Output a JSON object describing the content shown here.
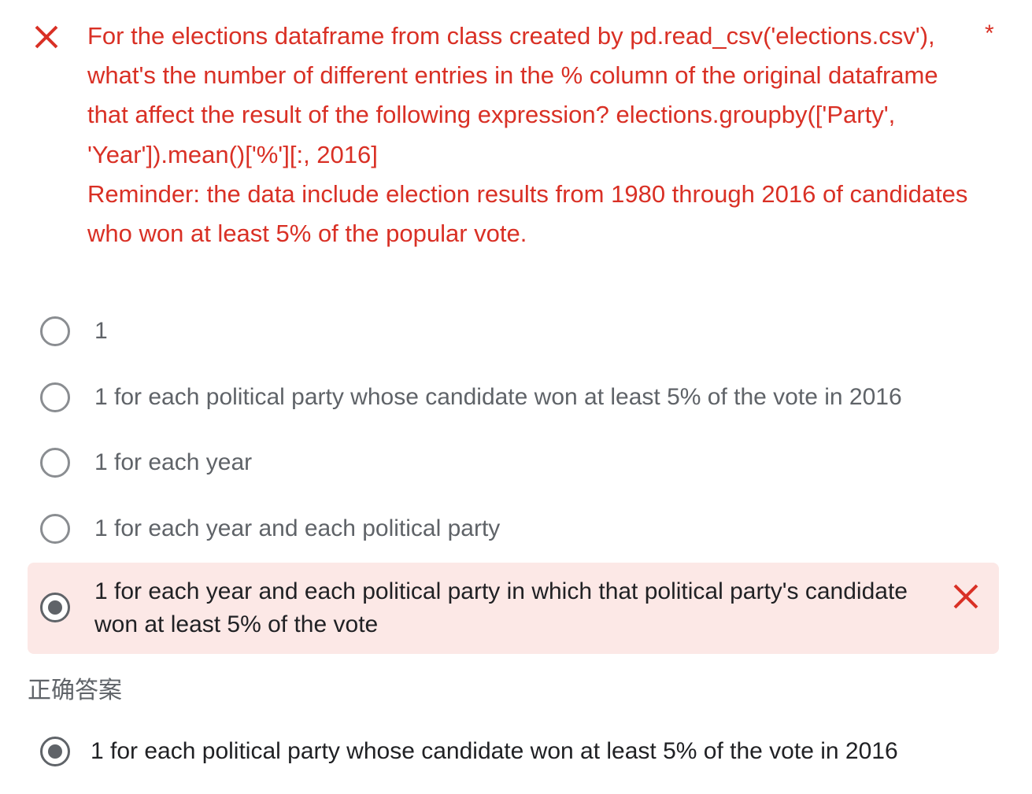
{
  "question": {
    "status_icon": "close-icon",
    "text": "For the elections dataframe from class created by pd.read_csv('elections.csv'), what's the number of different entries in the % column of the original dataframe that affect the result of the following expression? elections.groupby(['Party', 'Year']).mean()['%'][:, 2016]",
    "reminder": "Reminder: the data include election results from 1980 through 2016 of candidates who won at least 5% of the popular vote.",
    "required_marker": "*",
    "color": "#d93025"
  },
  "options": [
    {
      "label": "1",
      "selected": false
    },
    {
      "label": "1 for each political party whose candidate won at least 5% of the vote in 2016",
      "selected": false
    },
    {
      "label": "1 for each year",
      "selected": false
    },
    {
      "label": "1 for each year and each political party",
      "selected": false
    },
    {
      "label": "1 for each year and each political party in which that political party's candidate won at least 5% of the vote",
      "selected": true,
      "result": "incorrect"
    }
  ],
  "correct_answer": {
    "heading": "正确答案",
    "label": "1 for each political party whose candidate won at least 5% of the vote in 2016",
    "selected": true
  },
  "colors": {
    "error_red": "#d93025",
    "wrong_answer_bg": "#fce8e6",
    "muted_text": "#5f6368",
    "dark_text": "#202124"
  }
}
